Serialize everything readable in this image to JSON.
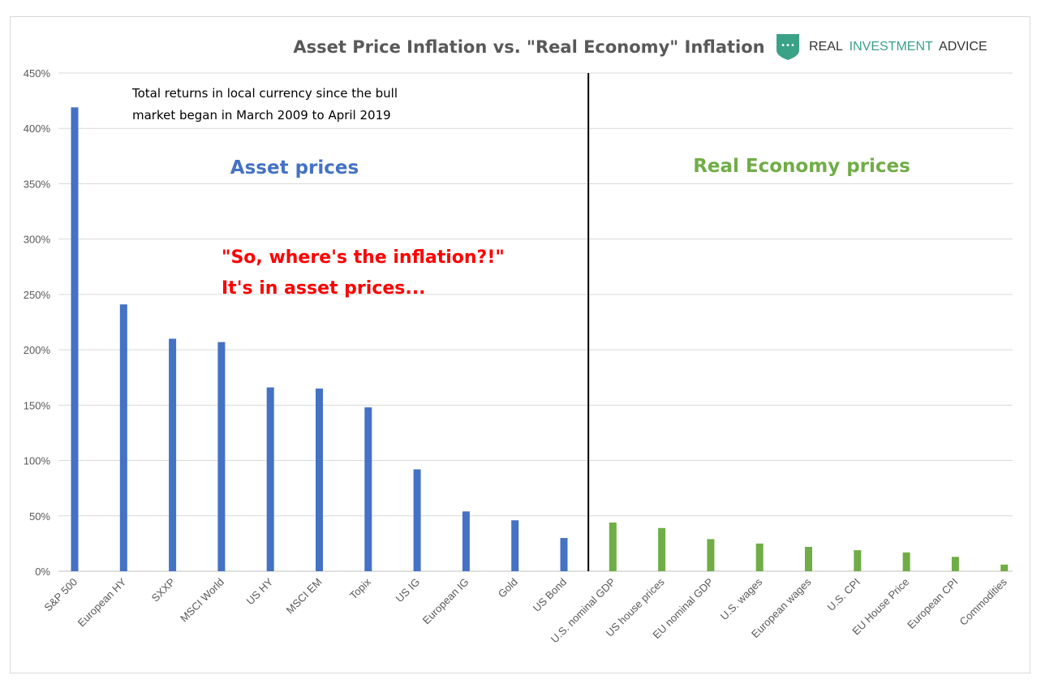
{
  "chart_data": {
    "type": "bar",
    "title": "Asset Price Inflation vs. \"Real Economy\" Inflation",
    "xlabel": "",
    "ylabel": "",
    "ylim": [
      0,
      450
    ],
    "y_ticks": [
      "0%",
      "50%",
      "100%",
      "150%",
      "200%",
      "250%",
      "300%",
      "350%",
      "400%",
      "450%"
    ],
    "grid": true,
    "categories": [
      "S&P 500",
      "European HY",
      "SXXP",
      "MSCI World",
      "US HY",
      "MSCI EM",
      "Topix",
      "US IG",
      "European IG",
      "Gold",
      "US Bond",
      "U.S. nominal GDP",
      "US house prices",
      "EU nominal GDP",
      "U.S. wages",
      "European wages",
      "U.S. CPI",
      "EU House Price",
      "European CPI",
      "Commodities"
    ],
    "values": [
      419,
      241,
      210,
      207,
      166,
      165,
      148,
      92,
      54,
      46,
      30,
      44,
      39,
      29,
      25,
      22,
      19,
      17,
      13,
      6
    ],
    "groups": [
      {
        "name": "Asset prices",
        "count": 11,
        "color": "#4472c4"
      },
      {
        "name": "Real Economy prices",
        "count": 9,
        "color": "#70ad47"
      }
    ],
    "annotations": {
      "note_line1": "Total returns in local currency since the bull",
      "note_line2": "market began in March 2009 to April 2019",
      "callout_line1": "\"So, where's the inflation?!\"",
      "callout_line2": "It's in asset prices..."
    },
    "divider": "between US Bond and U.S. nominal GDP"
  },
  "logo": {
    "word1": "REAL",
    "word2": "INVESTMENT",
    "word3": "ADVICE",
    "icon": "shield-icon",
    "dark_color": "#333333",
    "accent_color": "#3aa287"
  },
  "colors": {
    "grid": "#d9d9d9",
    "axis_text": "#595959",
    "callout": "#ff0000",
    "divider": "#000000"
  }
}
